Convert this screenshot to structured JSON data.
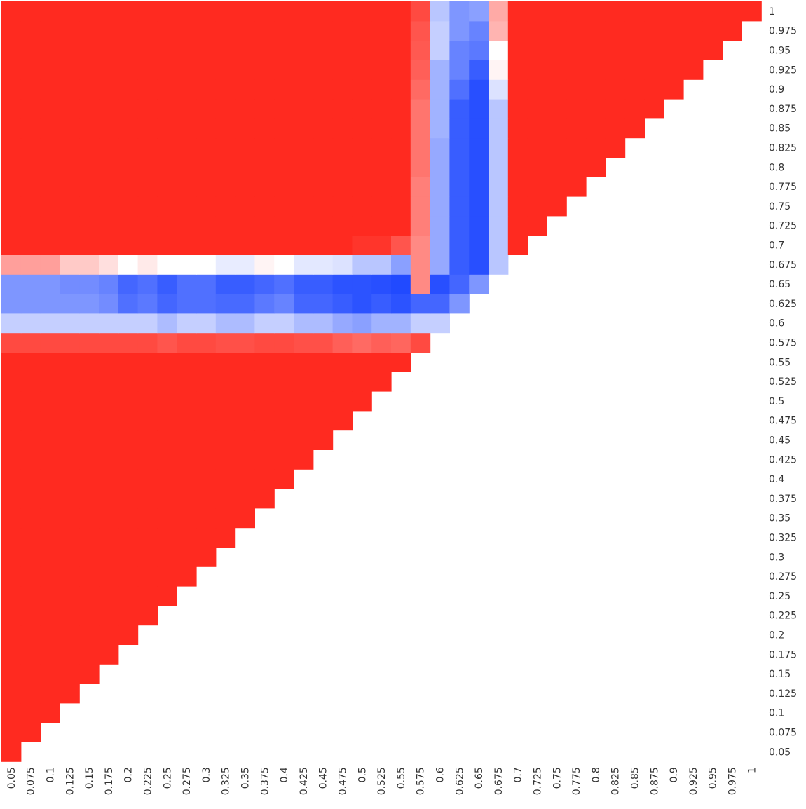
{
  "chart_data": {
    "type": "heatmap",
    "title": "",
    "xlabel": "",
    "ylabel": "",
    "x_categories": [
      "0.05",
      "0.075",
      "0.1",
      "0.125",
      "0.15",
      "0.175",
      "0.2",
      "0.225",
      "0.25",
      "0.275",
      "0.3",
      "0.325",
      "0.35",
      "0.375",
      "0.4",
      "0.425",
      "0.45",
      "0.475",
      "0.5",
      "0.525",
      "0.55",
      "0.575",
      "0.6",
      "0.625",
      "0.65",
      "0.675",
      "0.7",
      "0.725",
      "0.75",
      "0.775",
      "0.8",
      "0.825",
      "0.85",
      "0.875",
      "0.9",
      "0.925",
      "0.95",
      "0.975",
      "1"
    ],
    "y_categories": [
      "0.05",
      "0.075",
      "0.1",
      "0.125",
      "0.15",
      "0.175",
      "0.2",
      "0.225",
      "0.25",
      "0.275",
      "0.3",
      "0.325",
      "0.35",
      "0.375",
      "0.4",
      "0.425",
      "0.45",
      "0.475",
      "0.5",
      "0.525",
      "0.55",
      "0.575",
      "0.6",
      "0.625",
      "0.65",
      "0.675",
      "0.7",
      "0.725",
      "0.75",
      "0.775",
      "0.8",
      "0.825",
      "0.85",
      "0.875",
      "0.9",
      "0.925",
      "0.95",
      "0.975",
      "1"
    ],
    "value_range": [
      -1,
      1
    ],
    "colors": {
      "low": "#1540ff",
      "mid": "#ffffff",
      "high": "#ff2a20"
    },
    "lower_triangle_blank": true,
    "legend": "none",
    "grid": false,
    "row_overrides": [
      {
        "y": "0.675",
        "values": [
          0.45,
          0.45,
          0.45,
          0.25,
          0.25,
          0.15,
          0.0,
          0.1,
          0.0,
          0.0,
          0.0,
          -0.1,
          -0.1,
          0.05,
          0.0,
          -0.12,
          -0.12,
          -0.15,
          -0.3,
          -0.3,
          -0.5,
          -0.4,
          -0.5
        ]
      },
      {
        "y": "0.65",
        "values": [
          -0.55,
          -0.55,
          -0.55,
          -0.6,
          -0.6,
          -0.65,
          -0.8,
          -0.75,
          -0.85,
          -0.75,
          -0.75,
          -0.85,
          -0.85,
          -0.8,
          -0.75,
          -0.85,
          -0.85,
          -0.9,
          -0.9,
          -0.92,
          -0.95,
          -0.92,
          -0.92,
          -0.8,
          -0.55
        ]
      },
      {
        "y": "0.625",
        "values": [
          -0.55,
          -0.55,
          -0.55,
          -0.55,
          -0.55,
          -0.6,
          -0.75,
          -0.7,
          -0.8,
          -0.75,
          -0.75,
          -0.78,
          -0.78,
          -0.7,
          -0.65,
          -0.8,
          -0.8,
          -0.85,
          -0.9,
          -0.85,
          -0.9,
          -0.8,
          -0.8,
          -0.55
        ]
      },
      {
        "y": "0.6",
        "values": [
          -0.25,
          -0.25,
          -0.25,
          -0.25,
          -0.25,
          -0.25,
          -0.25,
          -0.25,
          -0.35,
          -0.25,
          -0.25,
          -0.35,
          -0.35,
          -0.25,
          -0.25,
          -0.35,
          -0.35,
          -0.45,
          -0.5,
          -0.4,
          -0.4,
          -0.25,
          -0.25
        ]
      },
      {
        "y": "0.575",
        "values": [
          0.85,
          0.85,
          0.85,
          0.85,
          0.85,
          0.85,
          0.85,
          0.85,
          0.8,
          0.85,
          0.85,
          0.82,
          0.82,
          0.85,
          0.85,
          0.82,
          0.82,
          0.75,
          0.7,
          0.75,
          0.72,
          0.85
        ]
      }
    ],
    "column_overrides": [
      {
        "x": "0.575",
        "values": [
          0.85,
          0.8,
          0.78,
          0.75,
          0.7,
          0.65,
          0.65,
          0.65,
          0.65,
          0.6,
          0.6,
          0.6,
          0.6,
          0.55,
          0.55
        ]
      },
      {
        "x": "0.6",
        "values": [
          -0.3,
          -0.25,
          -0.25,
          -0.4,
          -0.4,
          -0.4,
          -0.4,
          -0.45,
          -0.45,
          -0.45,
          -0.45,
          -0.45,
          -0.45,
          -0.45
        ]
      },
      {
        "x": "0.625",
        "values": [
          -0.55,
          -0.55,
          -0.65,
          -0.65,
          -0.75,
          -0.85,
          -0.85,
          -0.85,
          -0.85,
          -0.85,
          -0.85,
          -0.85,
          -0.85,
          -0.85
        ]
      },
      {
        "x": "0.65",
        "values": [
          -0.5,
          -0.65,
          -0.7,
          -0.85,
          -0.92,
          -0.92,
          -0.92,
          -0.92,
          -0.92,
          -0.92,
          -0.92,
          -0.92,
          -0.92,
          -0.92
        ]
      },
      {
        "x": "0.675",
        "values": [
          0.4,
          0.35,
          0.0,
          0.05,
          -0.15,
          -0.3,
          -0.3,
          -0.3,
          -0.3,
          -0.3,
          -0.3,
          -0.3,
          -0.3,
          -0.3
        ]
      }
    ],
    "cell_overrides": [
      {
        "x": "0.5",
        "y": "0.7",
        "value": 0.95
      },
      {
        "x": "0.525",
        "y": "0.7",
        "value": 0.95
      },
      {
        "x": "0.55",
        "y": "0.7",
        "value": 0.8
      },
      {
        "x": "0.575",
        "y": "0.7",
        "value": 0.55
      }
    ],
    "default_value": 1.0
  }
}
